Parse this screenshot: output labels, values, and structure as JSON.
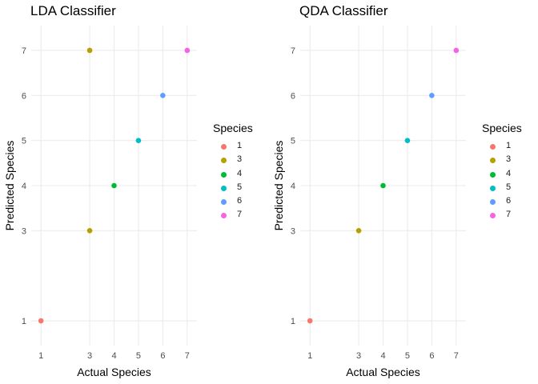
{
  "chart_data": [
    {
      "type": "scatter",
      "title": "LDA Classifier",
      "xlabel": "Actual Species",
      "ylabel": "Predicted Species",
      "x_ticks": [
        1,
        3,
        4,
        5,
        6,
        7
      ],
      "y_ticks": [
        1,
        3,
        4,
        5,
        6,
        7
      ],
      "xlim": [
        0.6,
        7.4
      ],
      "ylim": [
        0.45,
        7.55
      ],
      "grid": true,
      "points": [
        {
          "x": 1,
          "y": 1,
          "species": "1"
        },
        {
          "x": 3,
          "y": 3,
          "species": "3"
        },
        {
          "x": 3,
          "y": 7,
          "species": "3"
        },
        {
          "x": 4,
          "y": 4,
          "species": "4"
        },
        {
          "x": 5,
          "y": 5,
          "species": "5"
        },
        {
          "x": 6,
          "y": 6,
          "species": "6"
        },
        {
          "x": 7,
          "y": 7,
          "species": "7"
        }
      ],
      "legend": {
        "title": "Species",
        "placement": "right",
        "entries": [
          {
            "label": "1",
            "color": "#F8766D"
          },
          {
            "label": "3",
            "color": "#B79F00"
          },
          {
            "label": "4",
            "color": "#00BA38"
          },
          {
            "label": "5",
            "color": "#00BFC4"
          },
          {
            "label": "6",
            "color": "#619CFF"
          },
          {
            "label": "7",
            "color": "#F564E3"
          }
        ]
      }
    },
    {
      "type": "scatter",
      "title": "QDA Classifier",
      "xlabel": "Actual Species",
      "ylabel": "Predicted Species",
      "x_ticks": [
        1,
        3,
        4,
        5,
        6,
        7
      ],
      "y_ticks": [
        1,
        3,
        4,
        5,
        6,
        7
      ],
      "xlim": [
        0.6,
        7.4
      ],
      "ylim": [
        0.45,
        7.55
      ],
      "grid": true,
      "points": [
        {
          "x": 1,
          "y": 1,
          "species": "1"
        },
        {
          "x": 3,
          "y": 3,
          "species": "3"
        },
        {
          "x": 4,
          "y": 4,
          "species": "4"
        },
        {
          "x": 5,
          "y": 5,
          "species": "5"
        },
        {
          "x": 6,
          "y": 6,
          "species": "6"
        },
        {
          "x": 7,
          "y": 7,
          "species": "7"
        }
      ],
      "legend": {
        "title": "Species",
        "placement": "right",
        "entries": [
          {
            "label": "1",
            "color": "#F8766D"
          },
          {
            "label": "3",
            "color": "#B79F00"
          },
          {
            "label": "4",
            "color": "#00BA38"
          },
          {
            "label": "5",
            "color": "#00BFC4"
          },
          {
            "label": "6",
            "color": "#619CFF"
          },
          {
            "label": "7",
            "color": "#F564E3"
          }
        ]
      }
    }
  ]
}
